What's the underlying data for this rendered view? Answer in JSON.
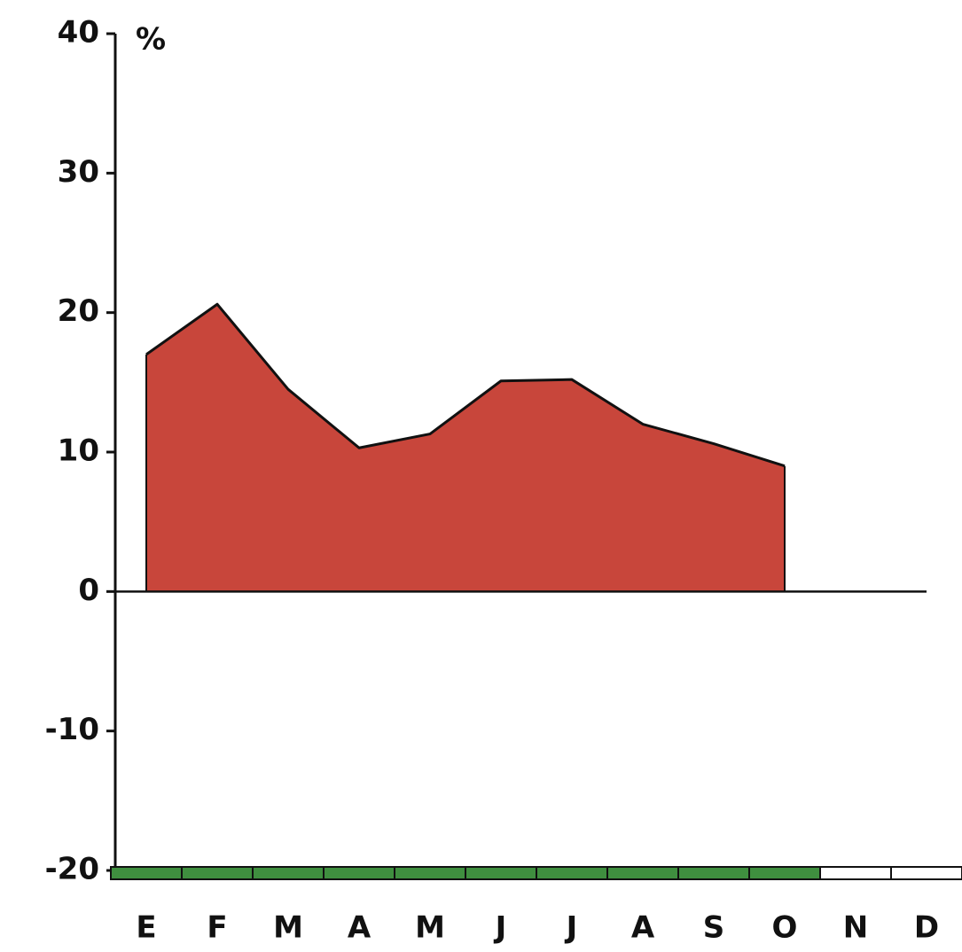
{
  "chart_data": {
    "type": "area",
    "y_label": "%",
    "categories": [
      "E",
      "F",
      "M",
      "A",
      "M",
      "J",
      "J",
      "A",
      "S",
      "O",
      "N",
      "D"
    ],
    "series": [
      {
        "color": "#c8463b",
        "values": [
          17.0,
          20.6,
          14.5,
          10.3,
          11.3,
          15.1,
          15.2,
          12.0,
          10.6,
          9.0,
          null,
          null
        ]
      }
    ],
    "ylim": [
      -20,
      40
    ],
    "yticks": [
      -20,
      -10,
      0,
      10,
      20,
      30,
      40
    ],
    "band_color": "#3f8f3f",
    "band": [
      true,
      true,
      true,
      true,
      true,
      true,
      true,
      true,
      true,
      true,
      false,
      false
    ]
  }
}
